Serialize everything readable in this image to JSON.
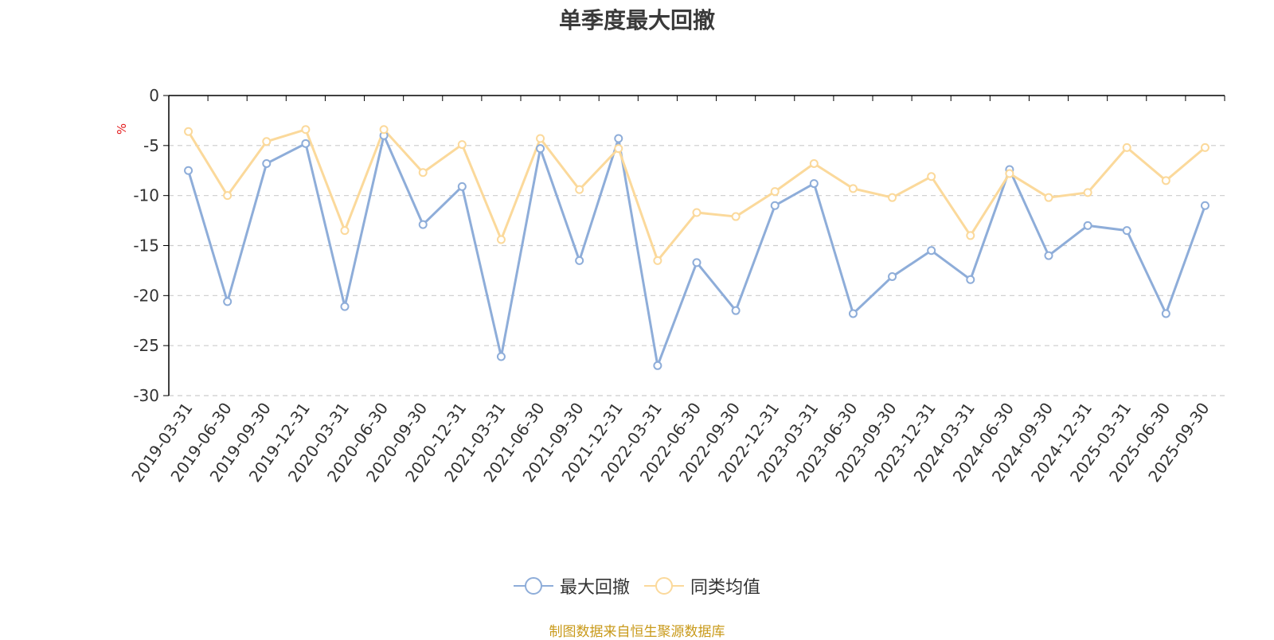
{
  "title": "单季度最大回撤",
  "source": "制图数据来自恒生聚源数据库",
  "colors": {
    "series1": "#8eadd9",
    "series2": "#fbd99b",
    "unit": "#e31a1c",
    "source": "#c99a1a",
    "grid": "#cccccc",
    "axis": "#000000"
  },
  "chart_data": {
    "type": "line",
    "title": "单季度最大回撤",
    "ylabel": "%",
    "ylim": [
      -30,
      0
    ],
    "yticks": [
      0,
      -5,
      -10,
      -15,
      -20,
      -25,
      -30
    ],
    "grid": true,
    "legend_position": "bottom-center",
    "categories": [
      "2019-03-31",
      "2019-06-30",
      "2019-09-30",
      "2019-12-31",
      "2020-03-31",
      "2020-06-30",
      "2020-09-30",
      "2020-12-31",
      "2021-03-31",
      "2021-06-30",
      "2021-09-30",
      "2021-12-31",
      "2022-03-31",
      "2022-06-30",
      "2022-09-30",
      "2022-12-31",
      "2023-03-31",
      "2023-06-30",
      "2023-09-30",
      "2023-12-31",
      "2024-03-31",
      "2024-06-30",
      "2024-09-30",
      "2024-12-31",
      "2025-03-31",
      "2025-06-30",
      "2025-09-30"
    ],
    "series": [
      {
        "name": "最大回撤",
        "values": [
          -7.5,
          -20.6,
          -6.8,
          -4.8,
          -21.1,
          -4.0,
          -12.9,
          -9.1,
          -26.1,
          -5.3,
          -16.5,
          -4.3,
          -27.0,
          -16.7,
          -21.5,
          -11.0,
          -8.8,
          -21.8,
          -18.1,
          -15.5,
          -18.4,
          -7.4,
          -16.0,
          -13.0,
          -13.5,
          -21.8,
          -11.0
        ]
      },
      {
        "name": "同类均值",
        "values": [
          -3.6,
          -10.0,
          -4.6,
          -3.4,
          -13.5,
          -3.4,
          -7.7,
          -4.9,
          -14.4,
          -4.3,
          -9.4,
          -5.3,
          -16.5,
          -11.7,
          -12.1,
          -9.6,
          -6.8,
          -9.3,
          -10.2,
          -8.1,
          -14.0,
          -7.8,
          -10.2,
          -9.7,
          -5.2,
          -8.5,
          -5.2
        ]
      }
    ]
  }
}
